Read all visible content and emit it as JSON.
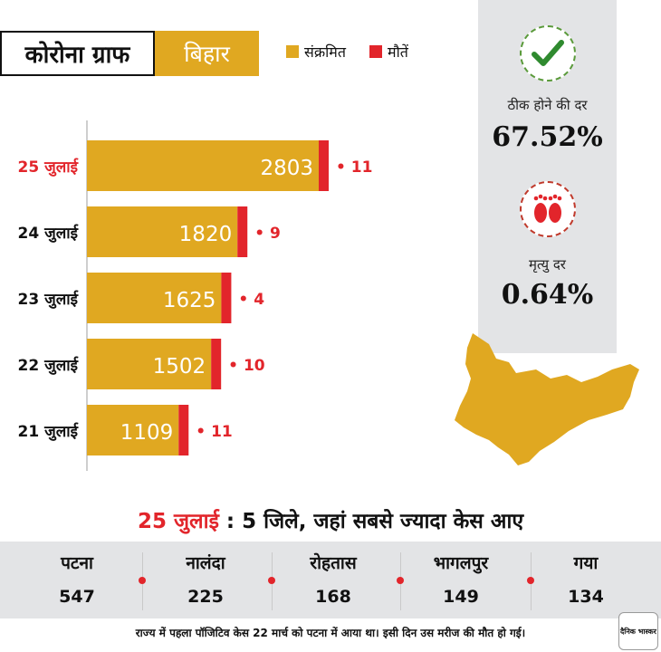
{
  "header": {
    "title": "कोरोना ग्राफ",
    "state": "बिहार",
    "legend_infected": "संक्रमित",
    "legend_deaths": "मौतें"
  },
  "colors": {
    "infected": "#e0a821",
    "deaths": "#e2252b",
    "highlight_date": "#e2252b"
  },
  "chart_data": {
    "type": "bar",
    "orientation": "horizontal",
    "categories": [
      "25 जुलाई",
      "24 जुलाई",
      "23 जुलाई",
      "22 जुलाई",
      "21 जुलाई"
    ],
    "series": [
      {
        "name": "संक्रमित",
        "values": [
          2803,
          1820,
          1625,
          1502,
          1109
        ]
      },
      {
        "name": "मौतें",
        "values": [
          11,
          9,
          4,
          10,
          11
        ]
      }
    ],
    "value_labels": [
      "2803",
      "1820",
      "1625",
      "1502",
      "1109"
    ],
    "death_labels": [
      "• 11",
      "• 9",
      "• 4",
      "• 10",
      "• 11"
    ],
    "highlighted_category": "25 जुलाई",
    "legend": "top"
  },
  "stats": {
    "recovery_label": "ठीक होने की दर",
    "recovery_value": "67.52%",
    "recovery_icon": "check-icon",
    "death_rate_label": "मृत्यु दर",
    "death_rate_value": "0.64%",
    "death_rate_icon": "footprints-icon"
  },
  "districts": {
    "title_date": "25 जुलाई",
    "title_rest": ": 5 जिले, जहां सबसे ज्यादा केस आए",
    "items": [
      {
        "name": "पटना",
        "value": "547"
      },
      {
        "name": "नालंदा",
        "value": "225"
      },
      {
        "name": "रोहतास",
        "value": "168"
      },
      {
        "name": "भागलपुर",
        "value": "149"
      },
      {
        "name": "गया",
        "value": "134"
      }
    ]
  },
  "footer": {
    "note": "राज्य में पहला पॉजिटिव केस 22 मार्च को पटना में आया था। इसी दिन उस मरीज की मौत हो गई।",
    "logo_text": "दैनिक भास्कर"
  }
}
